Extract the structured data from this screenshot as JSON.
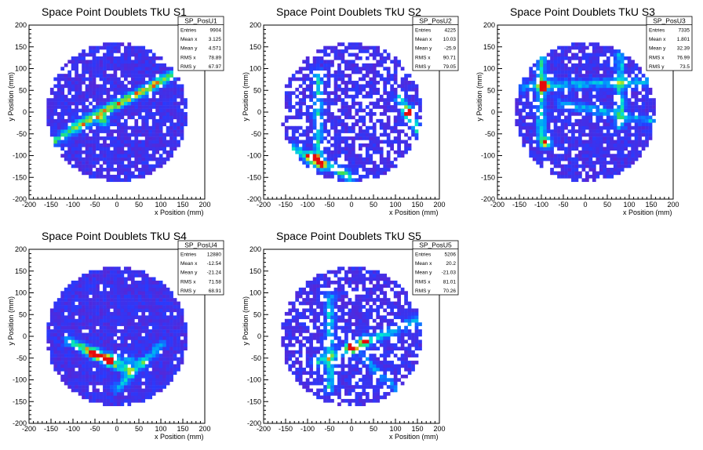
{
  "chart_data": [
    {
      "type": "heatmap",
      "title": "Space Point Doublets TkU S1",
      "xlabel": "x Position (mm)",
      "ylabel": "y Position (mm)",
      "xlim": [
        -200,
        200
      ],
      "ylim": [
        -200,
        200
      ],
      "xticks": [
        -200,
        -150,
        -100,
        -50,
        0,
        50,
        100,
        150,
        200
      ],
      "yticks": [
        -200,
        -150,
        -100,
        -50,
        0,
        50,
        100,
        150,
        200
      ],
      "stats": {
        "name": "SP_PosU1",
        "rows": [
          {
            "label": "Entries",
            "value": "9904"
          },
          {
            "label": "Mean x",
            "value": "3.125"
          },
          {
            "label": "Mean y",
            "value": "4.571"
          },
          {
            "label": "RMS x",
            "value": "78.89"
          },
          {
            "label": "RMS y",
            "value": "67.97"
          }
        ]
      },
      "bin_size_mm": 8,
      "disk_radius_mm": 160,
      "empty_fraction": 0.12,
      "tracks": [
        {
          "from": [
            -150,
            -70
          ],
          "to": [
            140,
            95
          ],
          "peak": 0.55
        },
        {
          "from": [
            -100,
            -30
          ],
          "to": [
            100,
            70
          ],
          "peak": 0.35
        }
      ],
      "hotspots": [
        {
          "x": -30,
          "y": -20,
          "level": 0.55
        }
      ],
      "seed": 11
    },
    {
      "type": "heatmap",
      "title": "Space Point Doublets TkU S2",
      "xlabel": "x Position (mm)",
      "ylabel": "y Position (mm)",
      "xlim": [
        -200,
        200
      ],
      "ylim": [
        -200,
        200
      ],
      "xticks": [
        -200,
        -150,
        -100,
        -50,
        0,
        50,
        100,
        150,
        200
      ],
      "yticks": [
        -200,
        -150,
        -100,
        -50,
        0,
        50,
        100,
        150,
        200
      ],
      "stats": {
        "name": "SP_PosU2",
        "rows": [
          {
            "label": "Entries",
            "value": "4225"
          },
          {
            "label": "Mean x",
            "value": "10.03"
          },
          {
            "label": "Mean y",
            "value": "-25.9"
          },
          {
            "label": "RMS x",
            "value": "90.71"
          },
          {
            "label": "RMS y",
            "value": "79.05"
          }
        ]
      },
      "bin_size_mm": 8,
      "disk_radius_mm": 160,
      "empty_fraction": 0.32,
      "tracks": [
        {
          "from": [
            -75,
            90
          ],
          "to": [
            -75,
            -110
          ],
          "peak": 0.45
        },
        {
          "from": [
            -140,
            -80
          ],
          "to": [
            0,
            -150
          ],
          "peak": 0.55
        },
        {
          "from": [
            110,
            30
          ],
          "to": [
            150,
            -40
          ],
          "peak": 0.6
        }
      ],
      "hotspots": [
        {
          "x": -90,
          "y": -105,
          "level": 0.95
        },
        {
          "x": 130,
          "y": 0,
          "level": 0.9
        },
        {
          "x": -70,
          "y": -120,
          "level": 0.7
        }
      ],
      "seed": 23
    },
    {
      "type": "heatmap",
      "title": "Space Point Doublets TkU S3",
      "xlabel": "x Position (mm)",
      "ylabel": "y Position (mm)",
      "xlim": [
        -200,
        200
      ],
      "ylim": [
        -200,
        200
      ],
      "xticks": [
        -200,
        -150,
        -100,
        -50,
        0,
        50,
        100,
        150,
        200
      ],
      "yticks": [
        -200,
        -150,
        -100,
        -50,
        0,
        50,
        100,
        150,
        200
      ],
      "stats": {
        "name": "SP_PosU3",
        "rows": [
          {
            "label": "Entries",
            "value": "7335"
          },
          {
            "label": "Mean x",
            "value": "1.801"
          },
          {
            "label": "Mean y",
            "value": "32.39"
          },
          {
            "label": "RMS x",
            "value": "76.99"
          },
          {
            "label": "RMS y",
            "value": "73.5"
          }
        ]
      },
      "bin_size_mm": 8,
      "disk_radius_mm": 160,
      "empty_fraction": 0.14,
      "tracks": [
        {
          "from": [
            -100,
            120
          ],
          "to": [
            -100,
            -60
          ],
          "peak": 0.5
        },
        {
          "from": [
            80,
            130
          ],
          "to": [
            80,
            -30
          ],
          "peak": 0.45
        },
        {
          "from": [
            -140,
            60
          ],
          "to": [
            140,
            70
          ],
          "peak": 0.4
        },
        {
          "from": [
            -60,
            20
          ],
          "to": [
            150,
            -20
          ],
          "peak": 0.35
        }
      ],
      "hotspots": [
        {
          "x": -95,
          "y": 60,
          "level": 0.9
        },
        {
          "x": -90,
          "y": -70,
          "level": 0.9
        }
      ],
      "seed": 37
    },
    {
      "type": "heatmap",
      "title": "Space Point Doublets TkU S4",
      "xlabel": "x Position (mm)",
      "ylabel": "y Position (mm)",
      "xlim": [
        -200,
        200
      ],
      "ylim": [
        -200,
        200
      ],
      "xticks": [
        -200,
        -150,
        -100,
        -50,
        0,
        50,
        100,
        150,
        200
      ],
      "yticks": [
        -200,
        -150,
        -100,
        -50,
        0,
        50,
        100,
        150,
        200
      ],
      "stats": {
        "name": "SP_PosU4",
        "rows": [
          {
            "label": "Entries",
            "value": "12880"
          },
          {
            "label": "Mean x",
            "value": "-12.54"
          },
          {
            "label": "Mean y",
            "value": "-21.24"
          },
          {
            "label": "RMS x",
            "value": "71.58"
          },
          {
            "label": "RMS y",
            "value": "68.91"
          }
        ]
      },
      "bin_size_mm": 8,
      "disk_radius_mm": 160,
      "empty_fraction": 0.05,
      "tracks": [
        {
          "from": [
            -110,
            -10
          ],
          "to": [
            30,
            -80
          ],
          "peak": 0.65
        },
        {
          "from": [
            0,
            -120
          ],
          "to": [
            100,
            -20
          ],
          "peak": 0.4
        },
        {
          "from": [
            -60,
            -40
          ],
          "to": [
            60,
            -60
          ],
          "peak": 0.3
        }
      ],
      "hotspots": [
        {
          "x": -50,
          "y": -40,
          "level": 0.95
        },
        {
          "x": -20,
          "y": -55,
          "level": 0.85
        }
      ],
      "seed": 41
    },
    {
      "type": "heatmap",
      "title": "Space Point Doublets TkU S5",
      "xlabel": "x Position (mm)",
      "ylabel": "y Position (mm)",
      "xlim": [
        -200,
        200
      ],
      "ylim": [
        -200,
        200
      ],
      "xticks": [
        -200,
        -150,
        -100,
        -50,
        0,
        50,
        100,
        150,
        200
      ],
      "yticks": [
        -200,
        -150,
        -100,
        -50,
        0,
        50,
        100,
        150,
        200
      ],
      "stats": {
        "name": "SP_PosU5",
        "rows": [
          {
            "label": "Entries",
            "value": "5206"
          },
          {
            "label": "Mean x",
            "value": "20.2"
          },
          {
            "label": "Mean y",
            "value": "-21.03"
          },
          {
            "label": "RMS x",
            "value": "81.01"
          },
          {
            "label": "RMS y",
            "value": "70.26"
          }
        ]
      },
      "bin_size_mm": 8,
      "disk_radius_mm": 160,
      "empty_fraction": 0.25,
      "tracks": [
        {
          "from": [
            -50,
            90
          ],
          "to": [
            -50,
            -120
          ],
          "peak": 0.45
        },
        {
          "from": [
            -80,
            -60
          ],
          "to": [
            160,
            40
          ],
          "peak": 0.45
        },
        {
          "from": [
            0,
            -20
          ],
          "to": [
            100,
            -120
          ],
          "peak": 0.3
        }
      ],
      "hotspots": [
        {
          "x": 0,
          "y": -25,
          "level": 0.95
        },
        {
          "x": 30,
          "y": -10,
          "level": 0.7
        }
      ],
      "seed": 53
    }
  ]
}
